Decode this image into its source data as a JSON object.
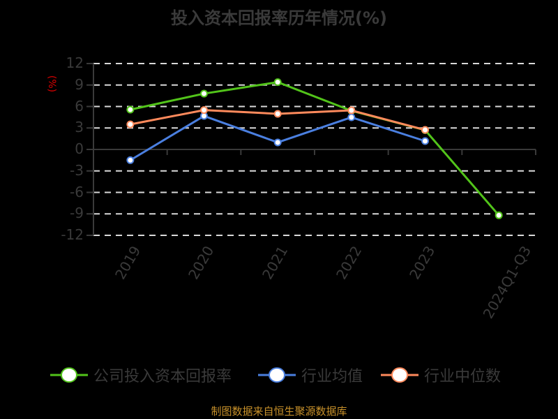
{
  "title": "投入资本回报率历年情况(%)",
  "unit_label": "(%)",
  "source": "制图数据来自恒生聚源数据库",
  "colors": {
    "background": "#000000",
    "company": "#52c41a",
    "industry_avg": "#4a7fe0",
    "industry_median": "#ff8a5c",
    "grid": "#d9d9d9",
    "axis": "#3a3a3a",
    "unit": "#e00000",
    "source": "#c8912a"
  },
  "yticks": [
    "12",
    "9",
    "6",
    "3",
    "0",
    "-3",
    "-6",
    "-9",
    "-12"
  ],
  "legend": [
    {
      "label": "公司投入资本回报率",
      "color": "#52c41a"
    },
    {
      "label": "行业均值",
      "color": "#4a7fe0"
    },
    {
      "label": "行业中位数",
      "color": "#ff8a5c"
    }
  ],
  "chart_data": {
    "type": "line",
    "title": "投入资本回报率历年情况(%)",
    "xlabel": "",
    "ylabel": "(%)",
    "ylim": [
      -12,
      12
    ],
    "yticks": [
      12,
      9,
      6,
      3,
      0,
      -3,
      -6,
      -9,
      -12
    ],
    "grid": true,
    "legend_position": "bottom",
    "categories": [
      "2019",
      "2020",
      "2021",
      "2022",
      "2023",
      "2024Q1-Q3"
    ],
    "series": [
      {
        "name": "公司投入资本回报率",
        "color": "#52c41a",
        "values": [
          5.56,
          7.8,
          9.4,
          5.4,
          2.7,
          -9.2
        ]
      },
      {
        "name": "行业均值",
        "color": "#4a7fe0",
        "values": [
          -1.5,
          4.68,
          0.98,
          4.49,
          1.17,
          null
        ]
      },
      {
        "name": "行业中位数",
        "color": "#ff8a5c",
        "values": [
          3.5,
          5.5,
          4.98,
          5.46,
          2.73,
          null
        ]
      }
    ]
  }
}
